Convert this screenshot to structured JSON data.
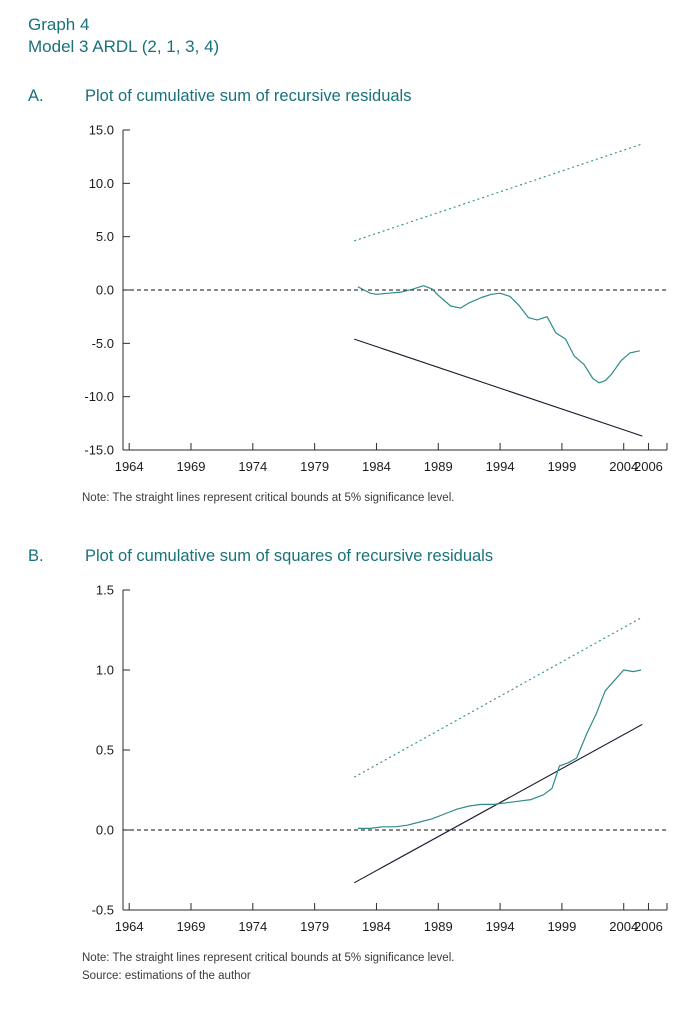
{
  "page": {
    "title_line1": "Graph 4",
    "title_line2": "Model 3 ARDL (2, 1, 3, 4)"
  },
  "colors": {
    "heading": "#17727a",
    "axis": "#2b2b2b",
    "teal_series": "#2e8b8b",
    "dark_bound": "#1b1b30",
    "zero_line": "#111111"
  },
  "panel_a": {
    "label": "A.",
    "title": "Plot of cumulative sum of recursive residuals",
    "note": "Note: The straight lines represent critical bounds at 5% significance level."
  },
  "panel_b": {
    "label": "B.",
    "title": "Plot of cumulative sum of squares of recursive residuals",
    "note": "Note: The straight lines represent critical bounds at 5% significance level.",
    "source": "Source: estimations of the author"
  },
  "chart_data": [
    {
      "id": "cusum",
      "type": "line",
      "title": "Plot of cumulative sum of recursive residuals",
      "xlabel": "",
      "ylabel": "",
      "xlim": [
        1963.5,
        2007.5
      ],
      "ylim": [
        -15,
        15
      ],
      "grid": false,
      "legend": "none",
      "zero_line": 0,
      "zero_color": "#111111",
      "yticks": [
        {
          "v": 15,
          "label": "15.0"
        },
        {
          "v": 10,
          "label": "10.0"
        },
        {
          "v": 5,
          "label": "5.0"
        },
        {
          "v": 0,
          "label": "0.0"
        },
        {
          "v": -5,
          "label": "-5.0"
        },
        {
          "v": -10,
          "label": "-10.0"
        },
        {
          "v": -15,
          "label": "-15.0"
        }
      ],
      "xticks": [
        {
          "v": 1964,
          "label": "1964"
        },
        {
          "v": 1969,
          "label": "1969"
        },
        {
          "v": 1974,
          "label": "1974"
        },
        {
          "v": 1979,
          "label": "1979"
        },
        {
          "v": 1984,
          "label": "1984"
        },
        {
          "v": 1989,
          "label": "1989"
        },
        {
          "v": 1994,
          "label": "1994"
        },
        {
          "v": 1999,
          "label": "1999"
        },
        {
          "v": 2004,
          "label": "2004"
        },
        {
          "v": 2006,
          "label": "2006"
        }
      ],
      "series": [
        {
          "name": "Upper critical bound 5pct",
          "color": "#2e8b8b",
          "dash": "2 3",
          "width": 1.1,
          "x": [
            1982.2,
            2005.5
          ],
          "y": [
            4.6,
            13.7
          ]
        },
        {
          "name": "Lower critical bound 5pct",
          "color": "#1b1b30",
          "width": 1.1,
          "x": [
            1982.2,
            2005.5
          ],
          "y": [
            -4.6,
            -13.7
          ]
        },
        {
          "name": "CUSUM",
          "color": "#2e8b8b",
          "width": 1.2,
          "x": [
            1982.5,
            1983,
            1983.5,
            1984,
            1985,
            1986,
            1987,
            1987.8,
            1988.5,
            1989,
            1990,
            1990.8,
            1991.5,
            1992.5,
            1993.3,
            1994,
            1994.8,
            1995.5,
            1996.3,
            1997,
            1997.8,
            1998.5,
            1999.3,
            2000,
            2000.8,
            2001.5,
            2002,
            2002.5,
            2003,
            2003.8,
            2004.5,
            2005.3
          ],
          "y": [
            0.3,
            0.0,
            -0.3,
            -0.4,
            -0.3,
            -0.2,
            0.1,
            0.4,
            0.1,
            -0.5,
            -1.5,
            -1.7,
            -1.2,
            -0.7,
            -0.4,
            -0.3,
            -0.6,
            -1.4,
            -2.6,
            -2.8,
            -2.5,
            -4.0,
            -4.6,
            -6.2,
            -7.0,
            -8.3,
            -8.7,
            -8.5,
            -7.9,
            -6.6,
            -5.9,
            -5.7
          ]
        }
      ]
    },
    {
      "id": "cusumsq",
      "type": "line",
      "title": "Plot of cumulative sum of squares of recursive residuals",
      "xlabel": "",
      "ylabel": "",
      "xlim": [
        1963.5,
        2007.5
      ],
      "ylim": [
        -0.5,
        1.5
      ],
      "grid": false,
      "legend": "none",
      "zero_line": 0,
      "zero_color": "#111111",
      "yticks": [
        {
          "v": 1.5,
          "label": "1.5"
        },
        {
          "v": 1.0,
          "label": "1.0"
        },
        {
          "v": 0.5,
          "label": "0.5"
        },
        {
          "v": 0.0,
          "label": "0.0"
        },
        {
          "v": -0.5,
          "label": "-0.5"
        }
      ],
      "xticks": [
        {
          "v": 1964,
          "label": "1964"
        },
        {
          "v": 1969,
          "label": "1969"
        },
        {
          "v": 1974,
          "label": "1974"
        },
        {
          "v": 1979,
          "label": "1979"
        },
        {
          "v": 1984,
          "label": "1984"
        },
        {
          "v": 1989,
          "label": "1989"
        },
        {
          "v": 1994,
          "label": "1994"
        },
        {
          "v": 1999,
          "label": "1999"
        },
        {
          "v": 2004,
          "label": "2004"
        },
        {
          "v": 2006,
          "label": "2006"
        }
      ],
      "series": [
        {
          "name": "Upper critical bound 5pct",
          "color": "#2e8b8b",
          "dash": "2 3",
          "width": 1.1,
          "x": [
            1982.2,
            2005.5
          ],
          "y": [
            0.33,
            1.33
          ]
        },
        {
          "name": "Lower critical bound 5pct",
          "color": "#1b1b30",
          "width": 1.1,
          "x": [
            1982.2,
            2005.5
          ],
          "y": [
            -0.33,
            0.66
          ]
        },
        {
          "name": "CUSUMSQ",
          "color": "#2e8b8b",
          "width": 1.2,
          "x": [
            1982.5,
            1983.5,
            1984.5,
            1985.5,
            1986.5,
            1987.5,
            1988.5,
            1989.5,
            1990.5,
            1991.5,
            1992.5,
            1993.5,
            1994.5,
            1995.5,
            1996.5,
            1997.5,
            1998.2,
            1998.8,
            1999.5,
            2000.2,
            2001,
            2001.8,
            2002.5,
            2003.2,
            2004,
            2004.8,
            2005.4
          ],
          "y": [
            0.01,
            0.01,
            0.02,
            0.02,
            0.03,
            0.05,
            0.07,
            0.1,
            0.13,
            0.15,
            0.16,
            0.16,
            0.17,
            0.18,
            0.19,
            0.22,
            0.26,
            0.4,
            0.42,
            0.45,
            0.6,
            0.73,
            0.87,
            0.93,
            1.0,
            0.99,
            1.0
          ]
        }
      ]
    }
  ]
}
